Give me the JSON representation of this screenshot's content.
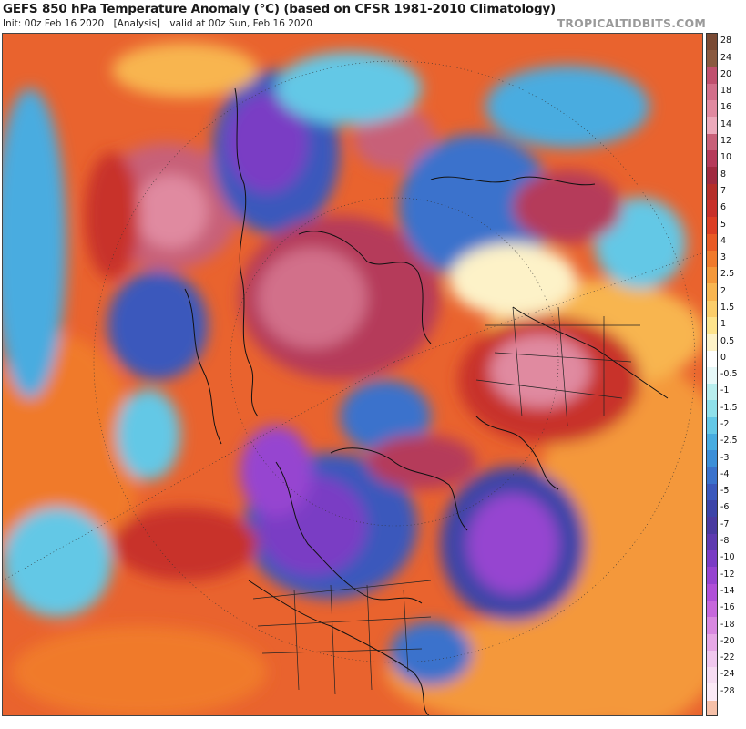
{
  "header": {
    "title": "GEFS 850 hPa Temperature Anomaly (°C) (based on CFSR 1981-2010 Climatology)",
    "init": "Init: 00z Feb 16 2020",
    "analysis": "[Analysis]",
    "valid": "valid at 00z Sun, Feb 16 2020",
    "brand": "TROPICALTIDBITS.COM"
  },
  "legend": {
    "levels": [
      {
        "label": "28",
        "color": "#7a4a34"
      },
      {
        "label": "24",
        "color": "#8a5a40"
      },
      {
        "label": "20",
        "color": "#c0506e"
      },
      {
        "label": "18",
        "color": "#d26f8a"
      },
      {
        "label": "16",
        "color": "#e08aa0"
      },
      {
        "label": "14",
        "color": "#ecaabb"
      },
      {
        "label": "12",
        "color": "#c86078"
      },
      {
        "label": "10",
        "color": "#b53a5a"
      },
      {
        "label": "8",
        "color": "#a02a40"
      },
      {
        "label": "7",
        "color": "#b52e2a"
      },
      {
        "label": "6",
        "color": "#c8302a"
      },
      {
        "label": "5",
        "color": "#dc3e24"
      },
      {
        "label": "4",
        "color": "#e95a25"
      },
      {
        "label": "3",
        "color": "#f07a2c"
      },
      {
        "label": "2.5",
        "color": "#f4983a"
      },
      {
        "label": "2",
        "color": "#f8b550"
      },
      {
        "label": "1.5",
        "color": "#fbcd6a"
      },
      {
        "label": "1",
        "color": "#fde38c"
      },
      {
        "label": "0.5",
        "color": "#fdf2c8"
      },
      {
        "label": "0",
        "color": "#ffffff"
      },
      {
        "label": "-0.5",
        "color": "#e6f8f8"
      },
      {
        "label": "-1",
        "color": "#b8eeee"
      },
      {
        "label": "-1.5",
        "color": "#8fe0ea"
      },
      {
        "label": "-2",
        "color": "#64c8e6"
      },
      {
        "label": "-2.5",
        "color": "#48ace0"
      },
      {
        "label": "-3",
        "color": "#3c8fd8"
      },
      {
        "label": "-4",
        "color": "#3a72cc"
      },
      {
        "label": "-5",
        "color": "#3a58bc"
      },
      {
        "label": "-6",
        "color": "#3c44a8"
      },
      {
        "label": "-7",
        "color": "#4a3aa0"
      },
      {
        "label": "-8",
        "color": "#5e3ab0"
      },
      {
        "label": "-10",
        "color": "#7a3cc4"
      },
      {
        "label": "-12",
        "color": "#9644d0"
      },
      {
        "label": "-14",
        "color": "#b050d8"
      },
      {
        "label": "-16",
        "color": "#c668dc"
      },
      {
        "label": "-18",
        "color": "#d888e0"
      },
      {
        "label": "-20",
        "color": "#e6a8e6"
      },
      {
        "label": "-22",
        "color": "#f0c8ee"
      },
      {
        "label": "-24",
        "color": "#f6dcf2"
      },
      {
        "label": "-28",
        "color": "#fbeaf6"
      }
    ],
    "bottom_color": "#f6c0a8"
  },
  "map": {
    "background_color": "#e9632e",
    "cold_regions": [
      "eastern-siberia-cold-anomaly",
      "scandinavia-russia-cold-anomaly",
      "north-pacific-cold-anomaly",
      "western-canada-cold-anomaly",
      "north-atlantic-cold-anomaly",
      "greenland-cold-anomaly",
      "southeast-us-cold-anomaly"
    ],
    "warm_regions": [
      "alaska-warm-anomaly",
      "arctic-ocean-warm-anomaly",
      "europe-warm-anomaly",
      "western-russia-warm-anomaly",
      "pacific-warm-band"
    ]
  }
}
